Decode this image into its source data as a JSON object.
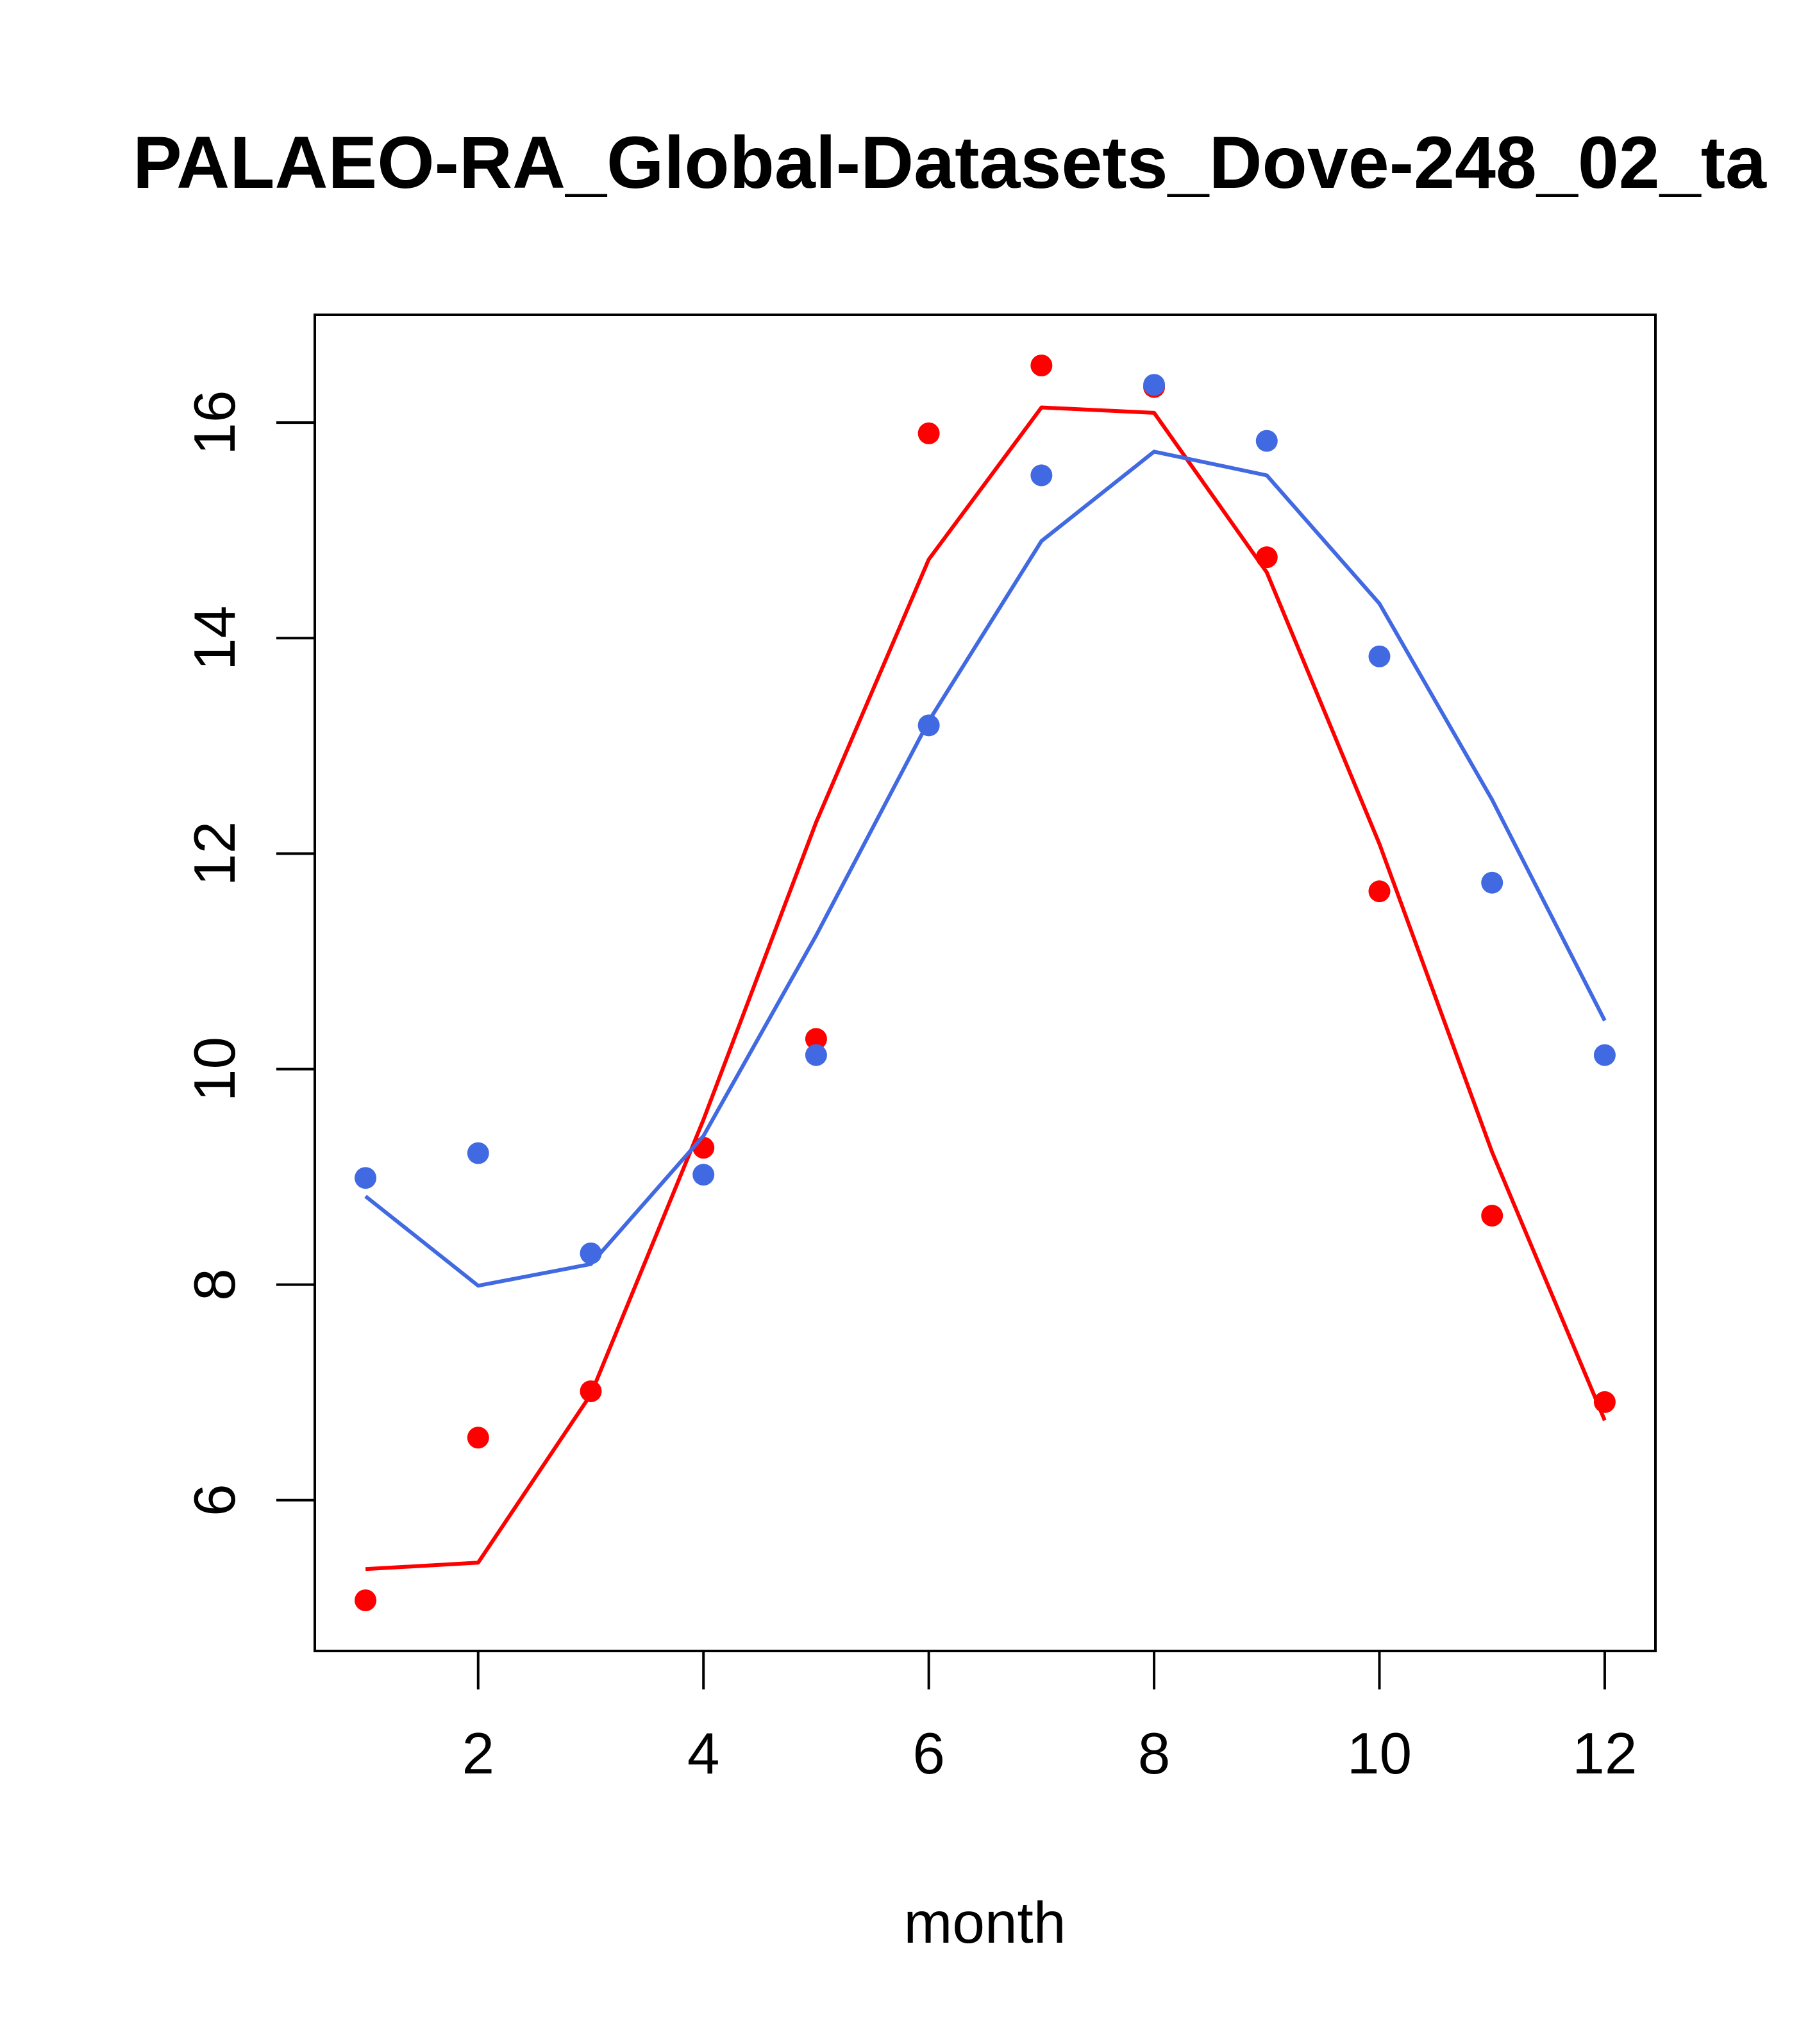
{
  "chart_data": {
    "type": "line",
    "title": "PALAEO-RA_Global-Datasets_Dove-248_02_ta",
    "xlabel": "month",
    "ylabel": "",
    "xlim": [
      0.55,
      12.45
    ],
    "ylim": [
      4.6,
      17.0
    ],
    "xticks": [
      2,
      4,
      6,
      8,
      10,
      12
    ],
    "yticks": [
      6,
      8,
      10,
      12,
      14,
      16
    ],
    "x": [
      1,
      2,
      3,
      4,
      5,
      6,
      7,
      8,
      9,
      10,
      11,
      12
    ],
    "grid": false,
    "legend": "none",
    "series": [
      {
        "color": "#ff0000",
        "points": [
          5.07,
          6.58,
          7.01,
          9.27,
          10.28,
          15.9,
          16.53,
          16.33,
          14.75,
          11.65,
          8.64,
          6.91
        ],
        "line": [
          5.36,
          5.42,
          6.98,
          9.53,
          12.29,
          14.73,
          16.14,
          16.09,
          14.61,
          12.09,
          9.23,
          6.74
        ]
      },
      {
        "color": "#4169e1",
        "points": [
          8.99,
          9.22,
          8.29,
          9.02,
          10.13,
          13.19,
          15.51,
          16.35,
          15.83,
          13.83,
          11.73,
          10.13
        ],
        "line": [
          8.82,
          7.99,
          8.19,
          9.38,
          11.24,
          13.23,
          14.9,
          15.73,
          15.51,
          14.32,
          12.5,
          10.45
        ]
      }
    ]
  }
}
